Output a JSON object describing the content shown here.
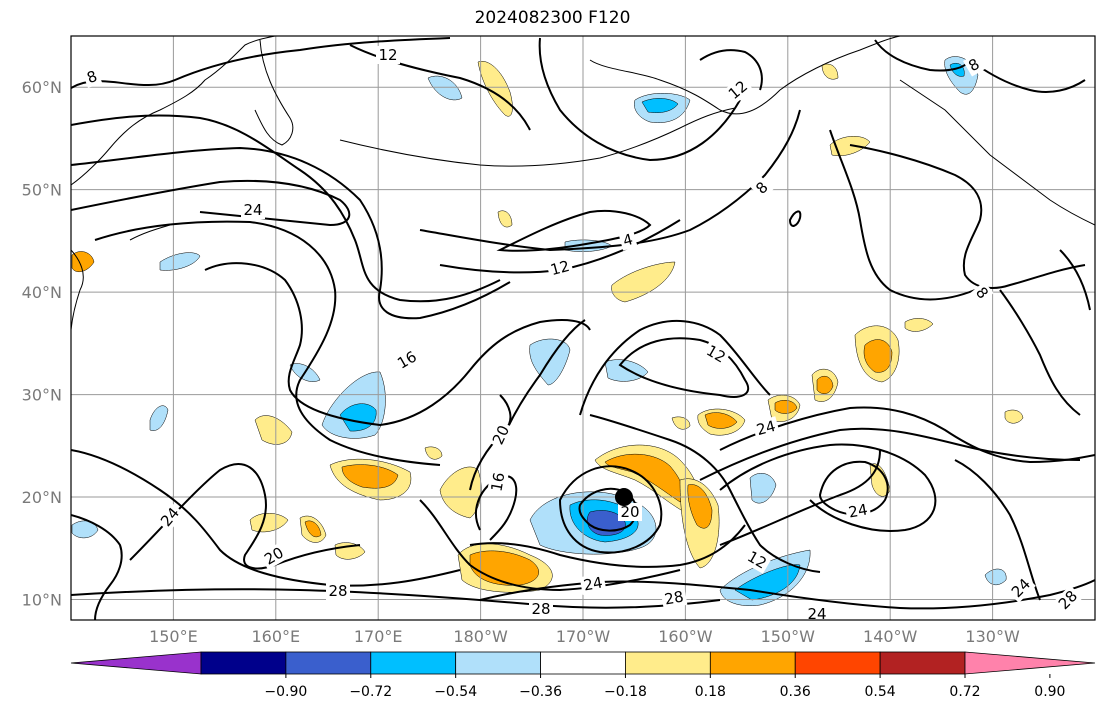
{
  "title": "2024082300 F120",
  "map": {
    "lon_ticks": [
      {
        "label": "150°E",
        "lon": 150
      },
      {
        "label": "160°E",
        "lon": 160
      },
      {
        "label": "170°E",
        "lon": 170
      },
      {
        "label": "180°W",
        "lon": 180
      },
      {
        "label": "170°W",
        "lon": 190
      },
      {
        "label": "160°W",
        "lon": 200
      },
      {
        "label": "150°W",
        "lon": 210
      },
      {
        "label": "140°W",
        "lon": 220
      },
      {
        "label": "130°W",
        "lon": 230
      }
    ],
    "lat_ticks": [
      {
        "label": "60°N",
        "lat": 60
      },
      {
        "label": "50°N",
        "lat": 50
      },
      {
        "label": "40°N",
        "lat": 40
      },
      {
        "label": "30°N",
        "lat": 30
      },
      {
        "label": "20°N",
        "lat": 20
      },
      {
        "label": "10°N",
        "lat": 10
      }
    ],
    "lon_range": [
      140,
      240
    ],
    "lat_range": [
      8,
      65
    ],
    "gridlines": true,
    "contour_labels": [
      "12",
      "8",
      "24",
      "16",
      "20",
      "28",
      "4",
      "12",
      "8",
      "12",
      "24",
      "24",
      "28",
      "20",
      "28",
      "24",
      "24",
      "12",
      "28",
      "24",
      "8",
      "8",
      "12",
      "16",
      "20",
      "24"
    ],
    "storm_center": {
      "lat": 20,
      "lon": 194,
      "color": "#000000"
    }
  },
  "colorbar": {
    "tick_labels": [
      "−0.90",
      "−0.72",
      "−0.54",
      "−0.36",
      "−0.18",
      "0.18",
      "0.36",
      "0.54",
      "0.72",
      "0.90"
    ],
    "colors": [
      "#9932cc",
      "#00008b",
      "#3a5fcd",
      "#00bfff",
      "#b0e0fa",
      "#ffffff",
      "#ffec8b",
      "#ffa500",
      "#ff4500",
      "#b22222",
      "#ff82ab"
    ],
    "extend": "both"
  }
}
